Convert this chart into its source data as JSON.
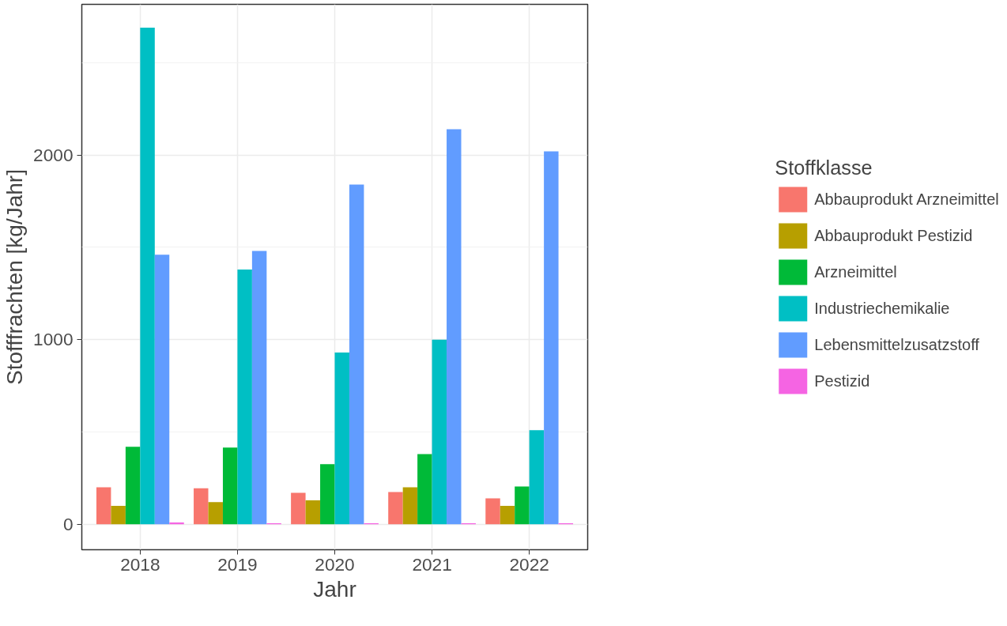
{
  "chart_data": {
    "type": "bar",
    "xlabel": "Jahr",
    "ylabel": "Stofffrachten [kg/Jahr]",
    "legend_title": "Stoffklasse",
    "categories": [
      "2018",
      "2019",
      "2020",
      "2021",
      "2022"
    ],
    "series": [
      {
        "name": "Abbauprodukt Arzneimittel",
        "color": "#F8766D",
        "values": [
          200,
          195,
          170,
          175,
          140
        ]
      },
      {
        "name": "Abbauprodukt Pestizid",
        "color": "#B79F00",
        "values": [
          100,
          120,
          130,
          200,
          100
        ]
      },
      {
        "name": "Arzneimittel",
        "color": "#00BA38",
        "values": [
          420,
          415,
          325,
          380,
          205
        ]
      },
      {
        "name": "Industriechemikalie",
        "color": "#00BFC4",
        "values": [
          2690,
          1380,
          930,
          1000,
          510
        ]
      },
      {
        "name": "Lebensmittelzusatzstoff",
        "color": "#619CFF",
        "values": [
          1460,
          1480,
          1840,
          2140,
          2020
        ]
      },
      {
        "name": "Pestizid",
        "color": "#F564E3",
        "values": [
          10,
          5,
          5,
          5,
          5
        ]
      }
    ],
    "ylim": [
      -138,
      2816
    ],
    "yticks": [
      0,
      1000,
      2000
    ],
    "grid": true,
    "legend": "right"
  }
}
